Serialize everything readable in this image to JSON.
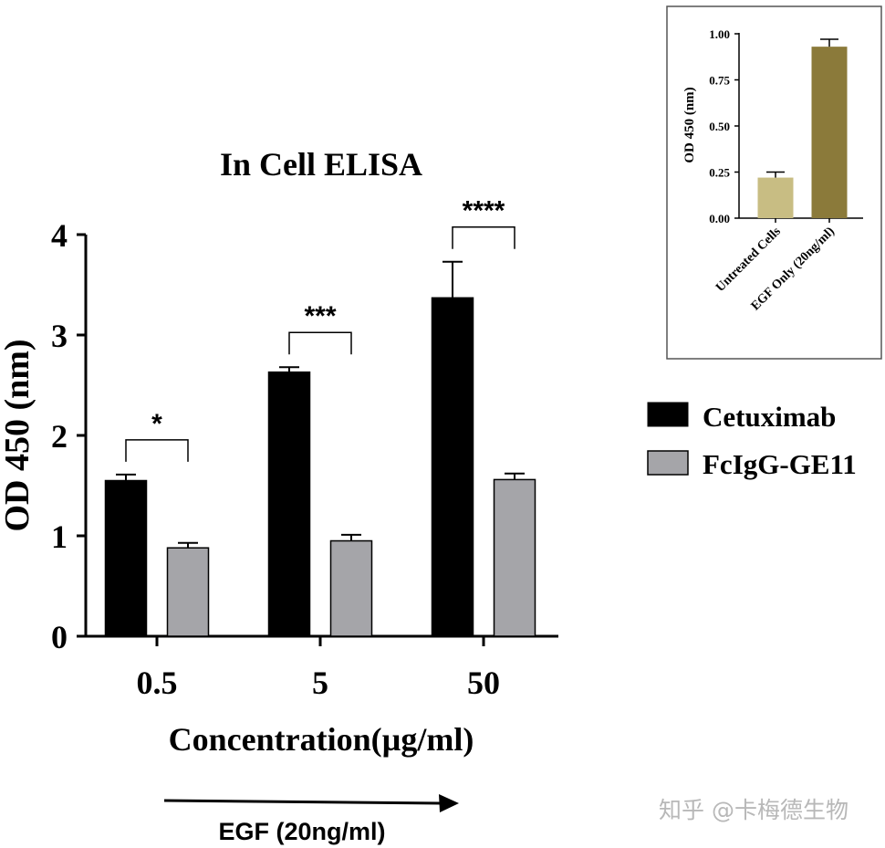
{
  "chart_data": [
    {
      "type": "bar",
      "title": "In Cell ELISA",
      "xlabel": "Concentration(µg/ml)",
      "ylabel": "OD 450 (nm)",
      "ylim": [
        0,
        4
      ],
      "yticks": [
        "0",
        "1",
        "2",
        "3",
        "4"
      ],
      "categories": [
        "0.5",
        "5",
        "50"
      ],
      "series": [
        {
          "name": "Cetuximab",
          "color": "#000000",
          "values": [
            1.55,
            2.63,
            3.37
          ],
          "errors": [
            0.06,
            0.05,
            0.36
          ]
        },
        {
          "name": "FcIgG-GE11",
          "color": "#a5a5a9",
          "values": [
            0.88,
            0.95,
            1.56
          ],
          "errors": [
            0.05,
            0.06,
            0.06
          ]
        }
      ],
      "significance": [
        "*",
        "***",
        "****"
      ],
      "legend": "right",
      "arrow_label": "EGF (20ng/ml)"
    },
    {
      "type": "bar",
      "title": "",
      "xlabel": "",
      "ylabel": "OD 450 (nm)",
      "ylim": [
        0,
        1.0
      ],
      "yticks": [
        "0.00",
        "0.25",
        "0.50",
        "0.75",
        "1.00"
      ],
      "categories": [
        "Untreated Cells",
        "EGF Only (20ng/ml)"
      ],
      "values": [
        0.22,
        0.93
      ],
      "errors": [
        0.03,
        0.04
      ],
      "colors": [
        "#c8bd83",
        "#8b7a3a"
      ]
    }
  ],
  "watermark": "知乎 @卡梅德生物"
}
